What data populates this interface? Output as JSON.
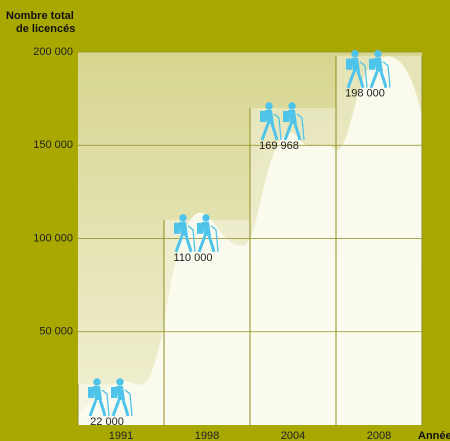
{
  "chart_data": {
    "type": "bar",
    "y_axis_label": [
      "Nombre total",
      "de licencés"
    ],
    "x_axis_label": "Année",
    "categories": [
      "1991",
      "1998",
      "2004",
      "2008"
    ],
    "values": [
      22000,
      110000,
      169968,
      198000
    ],
    "value_labels": [
      "22 000",
      "110 000",
      "169 968",
      "198 000"
    ],
    "color": "#4fc4ea",
    "ylim": [
      0,
      200000
    ],
    "yticks": [
      {
        "value": 50000,
        "label": "50 000"
      },
      {
        "value": 100000,
        "label": "100 000"
      },
      {
        "value": 150000,
        "label": "150 000"
      },
      {
        "value": 200000,
        "label": "200 000"
      }
    ],
    "grid": true
  }
}
